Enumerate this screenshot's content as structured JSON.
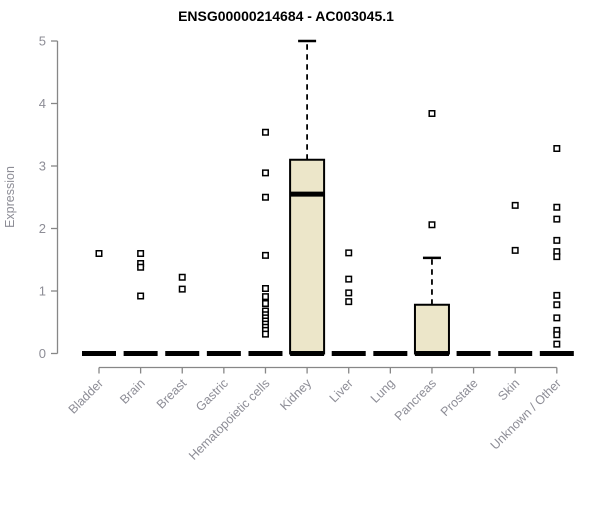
{
  "chart_data": {
    "type": "boxplot",
    "title": "ENSG00000214684 - AC003045.1",
    "xlabel": "",
    "ylabel": "Expression",
    "ylim": [
      0,
      5
    ],
    "yticks": [
      0,
      1,
      2,
      3,
      4,
      5
    ],
    "grid": false,
    "legend": "none",
    "categories": [
      "Bladder",
      "Brain",
      "Breast",
      "Gastric",
      "Hematopoietic cells",
      "Kidney",
      "Liver",
      "Lung",
      "Pancreas",
      "Prostate",
      "Skin",
      "Unknown / Other"
    ],
    "boxes": [
      {
        "category": "Bladder",
        "q1": 0,
        "median": 0,
        "q3": 0,
        "whisker_low": 0,
        "whisker_high": 0,
        "outliers": [
          1.6
        ]
      },
      {
        "category": "Brain",
        "q1": 0,
        "median": 0,
        "q3": 0,
        "whisker_low": 0,
        "whisker_high": 0,
        "outliers": [
          1.6,
          1.44,
          1.38,
          0.92
        ]
      },
      {
        "category": "Breast",
        "q1": 0,
        "median": 0,
        "q3": 0,
        "whisker_low": 0,
        "whisker_high": 0,
        "outliers": [
          1.22,
          1.03
        ]
      },
      {
        "category": "Gastric",
        "q1": 0,
        "median": 0,
        "q3": 0,
        "whisker_low": 0,
        "whisker_high": 0,
        "outliers": []
      },
      {
        "category": "Hematopoietic cells",
        "q1": 0,
        "median": 0,
        "q3": 0,
        "whisker_low": 0,
        "whisker_high": 0,
        "outliers": [
          3.54,
          2.89,
          2.5,
          1.57,
          1.04,
          0.91,
          0.8,
          0.68,
          0.62,
          0.57,
          0.52,
          0.47,
          0.42,
          0.37,
          0.31
        ]
      },
      {
        "category": "Kidney",
        "q1": 0,
        "median": 2.55,
        "q3": 3.1,
        "whisker_low": 0,
        "whisker_high": 5.0,
        "outliers": []
      },
      {
        "category": "Liver",
        "q1": 0,
        "median": 0,
        "q3": 0,
        "whisker_low": 0,
        "whisker_high": 0,
        "outliers": [
          1.61,
          1.19,
          0.97,
          0.83
        ]
      },
      {
        "category": "Lung",
        "q1": 0,
        "median": 0,
        "q3": 0,
        "whisker_low": 0,
        "whisker_high": 0,
        "outliers": []
      },
      {
        "category": "Pancreas",
        "q1": 0,
        "median": 0,
        "q3": 0.78,
        "whisker_low": 0,
        "whisker_high": 1.53,
        "outliers": [
          3.84,
          2.06
        ]
      },
      {
        "category": "Prostate",
        "q1": 0,
        "median": 0,
        "q3": 0,
        "whisker_low": 0,
        "whisker_high": 0,
        "outliers": []
      },
      {
        "category": "Skin",
        "q1": 0,
        "median": 0,
        "q3": 0,
        "whisker_low": 0,
        "whisker_high": 0,
        "outliers": [
          2.37,
          1.65
        ]
      },
      {
        "category": "Unknown / Other",
        "q1": 0,
        "median": 0,
        "q3": 0,
        "whisker_low": 0,
        "whisker_high": 0,
        "outliers": [
          3.28,
          2.34,
          2.15,
          1.81,
          1.63,
          1.55,
          0.93,
          0.78,
          0.57,
          0.37,
          0.3,
          0.15
        ]
      }
    ],
    "colors": {
      "box_fill": "#ece6c9",
      "box_stroke": "#000000",
      "axis": "#878787",
      "tick_label": "#8d8d96",
      "title": "#000000",
      "outlier_fill": "#ffffff"
    }
  }
}
